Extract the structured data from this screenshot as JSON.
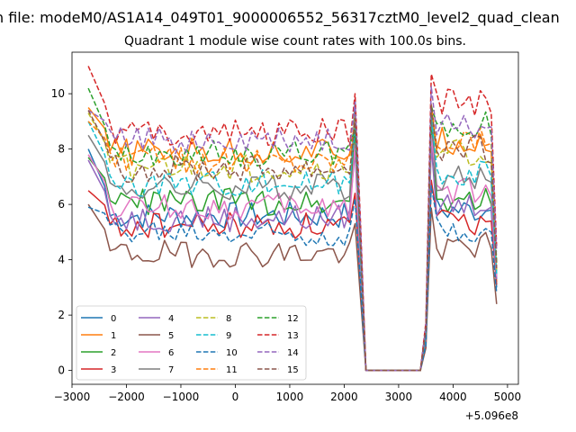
{
  "suptitle": "n file: modeM0/AS1A14_049T01_9000006552_56317cztM0_level2_quad_clean",
  "chart_data": {
    "type": "line",
    "title": "Quadrant 1 module wise count rates with 100.0s bins.",
    "x_offset_label": "+5.096e8",
    "xlim": [
      -3000,
      5200
    ],
    "ylim": [
      -0.5,
      11.5
    ],
    "xticks": [
      -3000,
      -2000,
      -1000,
      0,
      1000,
      2000,
      3000,
      4000,
      5000
    ],
    "xtick_labels": [
      "−3000",
      "−2000",
      "−1000",
      "0",
      "1000",
      "2000",
      "3000",
      "4000",
      "5000"
    ],
    "yticks": [
      0,
      2,
      4,
      6,
      8,
      10
    ],
    "ytick_labels": [
      "0",
      "2",
      "4",
      "6",
      "8",
      "10"
    ],
    "legend_position": "lower-left",
    "legend_columns": 4,
    "x_segments": {
      "seg1": [
        -2700,
        -2600,
        -2500,
        -2400,
        -2300,
        -2200,
        -2100,
        -2000,
        -1900,
        -1800,
        -1700,
        -1600,
        -1500,
        -1400,
        -1300,
        -1200,
        -1100,
        -1000,
        -900,
        -800,
        -700,
        -600,
        -500,
        -400,
        -300,
        -200,
        -100,
        0,
        100,
        200,
        300,
        400,
        500,
        600,
        700,
        800,
        900,
        1000,
        1100,
        1200,
        1300,
        1400,
        1500,
        1600,
        1700,
        1800,
        1900,
        2000,
        2100,
        2200
      ],
      "gap": [
        2300,
        2400,
        2500,
        3000,
        3400,
        3500
      ],
      "seg2": [
        3600,
        3700,
        3800,
        3900,
        4000,
        4100,
        4200,
        4300,
        4400,
        4500,
        4600,
        4700,
        4800
      ]
    },
    "series": [
      {
        "name": "0",
        "color": "#1f77b4",
        "dash": "solid",
        "base1": 5.6,
        "start": 8.0,
        "peak1": 9.8,
        "base2": 5.8,
        "end": 3.0,
        "last": 5.8
      },
      {
        "name": "1",
        "color": "#ff7f0e",
        "dash": "solid",
        "base1": 7.9,
        "start": 9.5,
        "peak1": 8.4,
        "base2": 8.3,
        "end": 3.2,
        "last": 7.9
      },
      {
        "name": "2",
        "color": "#2ca02c",
        "dash": "solid",
        "base1": 6.1,
        "start": 7.7,
        "peak1": 8.6,
        "base2": 6.2,
        "end": 3.4,
        "last": 6.0
      },
      {
        "name": "3",
        "color": "#d62728",
        "dash": "solid",
        "base1": 5.2,
        "start": 6.5,
        "peak1": 6.4,
        "base2": 5.3,
        "end": 3.1,
        "last": 5.4
      },
      {
        "name": "4",
        "color": "#9467bd",
        "dash": "solid",
        "base1": 5.5,
        "start": 7.6,
        "peak1": 7.9,
        "base2": 6.0,
        "end": 3.3,
        "last": 5.9
      },
      {
        "name": "5",
        "color": "#8c564b",
        "dash": "solid",
        "base1": 4.2,
        "start": 6.0,
        "peak1": 5.3,
        "base2": 4.5,
        "end": 2.4,
        "last": 4.4
      },
      {
        "name": "6",
        "color": "#e377c2",
        "dash": "solid",
        "base1": 5.9,
        "start": 7.8,
        "peak1": 8.2,
        "base2": 6.5,
        "end": 3.4,
        "last": 6.3
      },
      {
        "name": "7",
        "color": "#7f7f7f",
        "dash": "solid",
        "base1": 6.6,
        "start": 8.5,
        "peak1": 9.6,
        "base2": 7.0,
        "end": 3.6,
        "last": 6.8
      },
      {
        "name": "8",
        "color": "#bcbd22",
        "dash": "dashed",
        "base1": 7.3,
        "start": 9.3,
        "peak1": 9.2,
        "base2": 7.9,
        "end": 3.6,
        "last": 7.6
      },
      {
        "name": "9",
        "color": "#17becf",
        "dash": "dashed",
        "base1": 6.8,
        "start": 9.0,
        "peak1": 8.8,
        "base2": 7.2,
        "end": 3.5,
        "last": 7.0
      },
      {
        "name": "10",
        "color": "#1f77b4",
        "dash": "dashed",
        "base1": 5.0,
        "start": 5.9,
        "peak1": 6.2,
        "base2": 5.1,
        "end": 2.8,
        "last": 5.0
      },
      {
        "name": "11",
        "color": "#ff7f0e",
        "dash": "dashed",
        "base1": 7.6,
        "start": 9.0,
        "peak1": 9.0,
        "base2": 8.4,
        "end": 3.8,
        "last": 8.2
      },
      {
        "name": "12",
        "color": "#2ca02c",
        "dash": "dashed",
        "base1": 7.8,
        "start": 10.2,
        "peak1": 8.7,
        "base2": 8.9,
        "end": 3.9,
        "last": 8.5
      },
      {
        "name": "13",
        "color": "#d62728",
        "dash": "dashed",
        "base1": 8.6,
        "start": 11.0,
        "peak1": 10.0,
        "base2": 9.7,
        "end": 4.5,
        "last": 9.3
      },
      {
        "name": "14",
        "color": "#9467bd",
        "dash": "dashed",
        "base1": 8.3,
        "start": 9.4,
        "peak1": 9.7,
        "base2": 8.9,
        "end": 4.3,
        "last": 8.8
      },
      {
        "name": "15",
        "color": "#8c564b",
        "dash": "dashed",
        "base1": 7.3,
        "start": 9.4,
        "peak1": 9.1,
        "base2": 8.0,
        "end": 3.7,
        "last": 7.5
      }
    ]
  }
}
